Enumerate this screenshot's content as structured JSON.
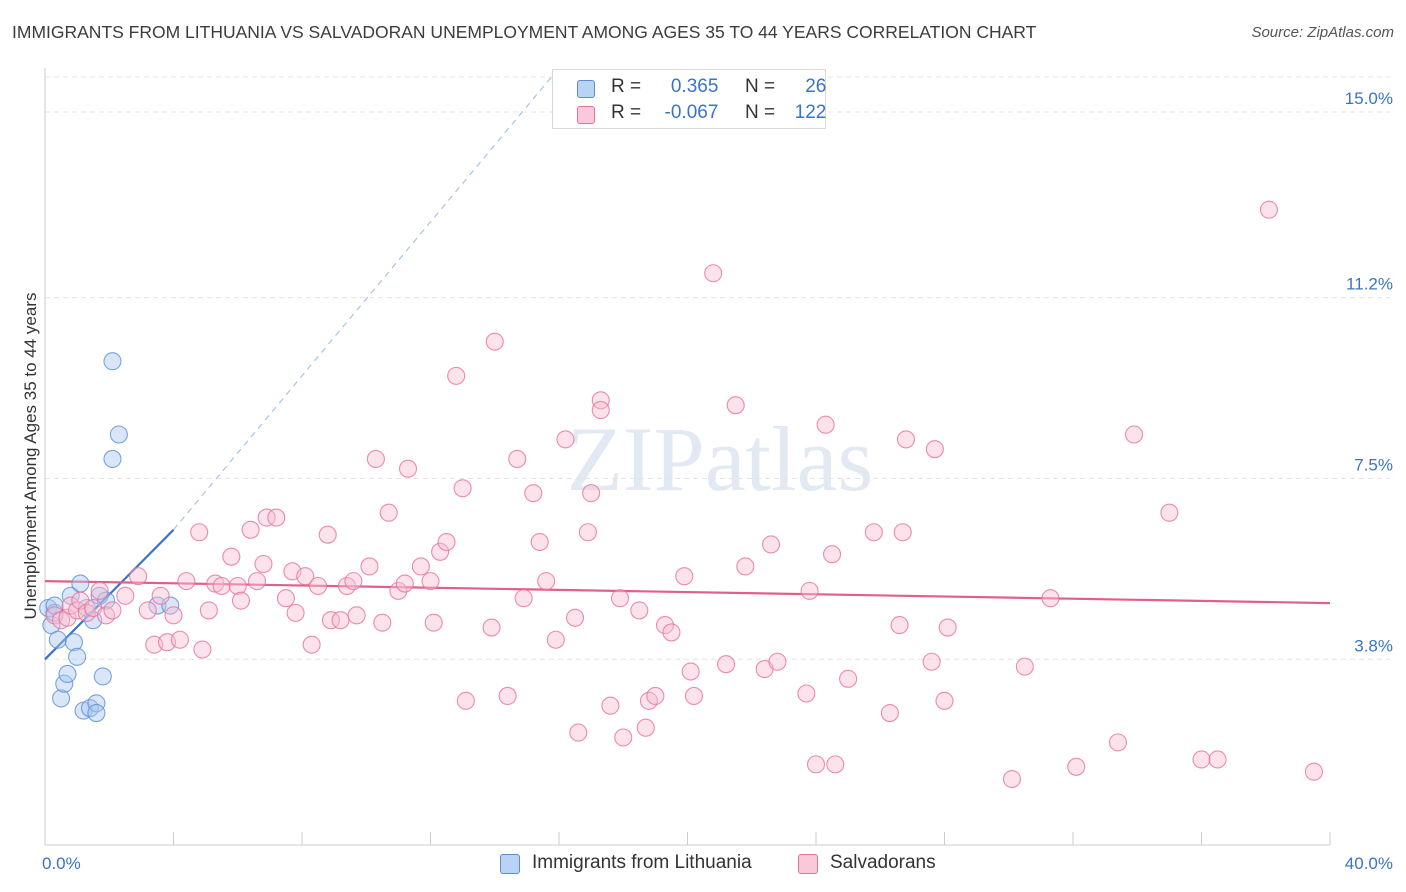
{
  "chart_data": {
    "type": "scatter",
    "title": "IMMIGRANTS FROM LITHUANIA VS SALVADORAN UNEMPLOYMENT AMONG AGES 35 TO 44 YEARS CORRELATION CHART",
    "source": "Source: ZipAtlas.com",
    "ylabel": "Unemployment Among Ages 35 to 44 years",
    "xlabel": "",
    "x_range": [
      0,
      40
    ],
    "y_range": [
      0,
      15.9
    ],
    "x_tick_labels": [
      "0.0%",
      "40.0%"
    ],
    "y_ticks": [
      {
        "value": 3.8,
        "label": "3.8%"
      },
      {
        "value": 7.5,
        "label": "7.5%"
      },
      {
        "value": 11.2,
        "label": "11.2%"
      },
      {
        "value": 15.0,
        "label": "15.0%"
      }
    ],
    "watermark": "ZIPatlas",
    "legend": {
      "rows": [
        {
          "r_label": "R =",
          "r_value": "0.365",
          "n_label": "N =",
          "n_value": "26"
        },
        {
          "r_label": "R =",
          "r_value": "-0.067",
          "n_label": "N =",
          "n_value": "122"
        }
      ]
    },
    "series": [
      {
        "name": "Immigrants from Lithuania",
        "color": "#5b8fd4",
        "fill": "#a9c8f0",
        "trend": {
          "x": [
            0.0,
            4.0
          ],
          "y": [
            3.8,
            6.45
          ],
          "extended_to": [
            16.0,
            15.9
          ]
        },
        "points": [
          [
            0.1,
            4.85
          ],
          [
            0.2,
            4.5
          ],
          [
            0.3,
            4.75
          ],
          [
            0.3,
            4.9
          ],
          [
            0.4,
            4.2
          ],
          [
            0.5,
            3.0
          ],
          [
            0.6,
            3.3
          ],
          [
            0.7,
            3.5
          ],
          [
            0.8,
            5.1
          ],
          [
            0.9,
            4.15
          ],
          [
            1.0,
            3.85
          ],
          [
            1.1,
            5.35
          ],
          [
            1.2,
            2.75
          ],
          [
            1.3,
            4.85
          ],
          [
            1.4,
            2.8
          ],
          [
            1.5,
            4.6
          ],
          [
            1.6,
            2.9
          ],
          [
            1.6,
            2.7
          ],
          [
            1.7,
            5.1
          ],
          [
            1.8,
            3.45
          ],
          [
            1.9,
            5.0
          ],
          [
            2.1,
            7.9
          ],
          [
            2.1,
            9.9
          ],
          [
            2.3,
            8.4
          ],
          [
            3.5,
            4.9
          ],
          [
            3.9,
            4.9
          ]
        ]
      },
      {
        "name": "Salvadorans",
        "color": "#e8709a",
        "fill": "#f6bfd2",
        "trend": {
          "x": [
            0.0,
            40.0
          ],
          "y": [
            5.4,
            4.95
          ]
        },
        "points": [
          [
            0.3,
            4.7
          ],
          [
            0.5,
            4.6
          ],
          [
            0.7,
            4.65
          ],
          [
            0.8,
            4.9
          ],
          [
            1.0,
            4.8
          ],
          [
            1.1,
            5.0
          ],
          [
            1.3,
            4.75
          ],
          [
            1.5,
            4.85
          ],
          [
            1.7,
            5.2
          ],
          [
            1.9,
            4.7
          ],
          [
            2.1,
            4.8
          ],
          [
            2.5,
            5.1
          ],
          [
            2.9,
            5.5
          ],
          [
            3.2,
            4.8
          ],
          [
            3.4,
            4.1
          ],
          [
            3.6,
            5.1
          ],
          [
            3.8,
            4.15
          ],
          [
            4.0,
            4.7
          ],
          [
            4.2,
            4.2
          ],
          [
            4.4,
            5.4
          ],
          [
            4.8,
            6.4
          ],
          [
            4.9,
            4.0
          ],
          [
            5.1,
            4.8
          ],
          [
            5.3,
            5.35
          ],
          [
            5.5,
            5.3
          ],
          [
            5.8,
            5.9
          ],
          [
            6.0,
            5.3
          ],
          [
            6.1,
            5.0
          ],
          [
            6.4,
            6.45
          ],
          [
            6.6,
            5.4
          ],
          [
            6.8,
            5.75
          ],
          [
            6.9,
            6.7
          ],
          [
            7.2,
            6.7
          ],
          [
            7.5,
            5.05
          ],
          [
            7.7,
            5.6
          ],
          [
            7.8,
            4.75
          ],
          [
            8.1,
            5.5
          ],
          [
            8.3,
            4.1
          ],
          [
            8.5,
            5.3
          ],
          [
            8.8,
            6.35
          ],
          [
            8.9,
            4.6
          ],
          [
            9.2,
            4.6
          ],
          [
            9.4,
            5.3
          ],
          [
            9.6,
            5.4
          ],
          [
            9.7,
            4.7
          ],
          [
            10.1,
            5.7
          ],
          [
            10.3,
            7.9
          ],
          [
            10.5,
            4.55
          ],
          [
            10.7,
            6.8
          ],
          [
            11.0,
            5.2
          ],
          [
            11.2,
            5.35
          ],
          [
            11.3,
            7.7
          ],
          [
            11.7,
            5.7
          ],
          [
            12.0,
            5.4
          ],
          [
            12.1,
            4.55
          ],
          [
            12.3,
            6.0
          ],
          [
            12.5,
            6.2
          ],
          [
            12.8,
            9.6
          ],
          [
            13.0,
            7.3
          ],
          [
            13.1,
            2.95
          ],
          [
            13.9,
            4.45
          ],
          [
            14.0,
            10.3
          ],
          [
            14.4,
            3.05
          ],
          [
            14.7,
            7.9
          ],
          [
            14.9,
            5.05
          ],
          [
            15.2,
            7.2
          ],
          [
            15.4,
            6.2
          ],
          [
            15.6,
            5.4
          ],
          [
            15.9,
            4.2
          ],
          [
            16.2,
            8.3
          ],
          [
            16.5,
            4.65
          ],
          [
            16.6,
            2.3
          ],
          [
            16.9,
            6.4
          ],
          [
            17.0,
            7.2
          ],
          [
            17.3,
            9.1
          ],
          [
            17.3,
            8.9
          ],
          [
            17.6,
            2.85
          ],
          [
            17.9,
            5.05
          ],
          [
            18.0,
            2.2
          ],
          [
            18.5,
            4.8
          ],
          [
            18.7,
            2.4
          ],
          [
            18.8,
            2.95
          ],
          [
            19.0,
            3.05
          ],
          [
            19.3,
            4.5
          ],
          [
            19.5,
            4.35
          ],
          [
            19.9,
            5.5
          ],
          [
            20.1,
            3.55
          ],
          [
            20.2,
            3.05
          ],
          [
            20.8,
            11.7
          ],
          [
            21.2,
            3.7
          ],
          [
            21.5,
            9.0
          ],
          [
            21.8,
            5.7
          ],
          [
            22.4,
            3.6
          ],
          [
            22.6,
            6.15
          ],
          [
            22.8,
            3.75
          ],
          [
            23.7,
            3.1
          ],
          [
            23.8,
            5.2
          ],
          [
            24.0,
            1.65
          ],
          [
            24.3,
            8.6
          ],
          [
            24.5,
            5.95
          ],
          [
            24.6,
            1.65
          ],
          [
            25.0,
            3.4
          ],
          [
            25.8,
            6.4
          ],
          [
            26.3,
            2.7
          ],
          [
            26.6,
            4.5
          ],
          [
            26.7,
            6.4
          ],
          [
            26.8,
            8.3
          ],
          [
            27.6,
            3.75
          ],
          [
            27.7,
            8.1
          ],
          [
            28.0,
            2.95
          ],
          [
            28.1,
            4.45
          ],
          [
            30.1,
            1.35
          ],
          [
            30.5,
            3.65
          ],
          [
            31.3,
            5.05
          ],
          [
            32.1,
            1.6
          ],
          [
            33.4,
            2.1
          ],
          [
            33.9,
            8.4
          ],
          [
            35.0,
            6.8
          ],
          [
            36.0,
            1.75
          ],
          [
            38.1,
            13.0
          ],
          [
            39.5,
            1.5
          ],
          [
            36.5,
            1.75
          ]
        ]
      }
    ]
  },
  "bottom_legend": {
    "items": [
      {
        "label": "Immigrants from Lithuania"
      },
      {
        "label": "Salvadorans"
      }
    ]
  }
}
